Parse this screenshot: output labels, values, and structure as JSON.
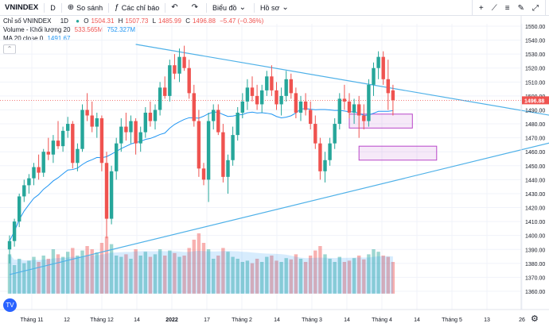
{
  "toolbar": {
    "symbol": "VNINDEX",
    "interval": "D",
    "compare": "So sánh",
    "indicators": "Các chỉ báo",
    "chart_style": "Biểu đồ",
    "template": "Hồ sơ"
  },
  "legend": {
    "title": "Chỉ số VNINDEX",
    "interval": "1D",
    "ohlc": {
      "o_label": "O",
      "o": "1504.31",
      "h_label": "H",
      "h": "1507.73",
      "l_label": "L",
      "l": "1485.99",
      "c_label": "C",
      "c": "1496.88",
      "chg": "−5.47 (−0.36%)"
    },
    "volume": {
      "label": "Volume - Khối lượng 20",
      "v1": "533.565M",
      "v2": "752.327M"
    },
    "ma": {
      "label": "MA 20 close 0",
      "value": "1491.67"
    }
  },
  "icons": [
    "plus-icon",
    "candles-icon",
    "undo-icon",
    "redo-icon",
    "tradingview-logo",
    "gear-icon"
  ],
  "colors": {
    "up": "#26a69a",
    "down": "#ef5350",
    "ma": "#2196f3",
    "trend": "#4fb1e8",
    "box": "#b946c9",
    "price_line": "#ef5350"
  },
  "chart_data": {
    "type": "candlestick",
    "y_axis": {
      "min": 1360,
      "max": 1550,
      "step": 10,
      "position": "right"
    },
    "last_price": 1496.88,
    "x_ticks": [
      "Tháng 11",
      "12",
      "Tháng 12",
      "14",
      "2022",
      "17",
      "Tháng 2",
      "14",
      "Tháng 3",
      "14",
      "Tháng 4",
      "14",
      "Tháng 5",
      "13",
      "26"
    ],
    "candles": [
      [
        1390,
        1400,
        1380,
        1396
      ],
      [
        1396,
        1412,
        1392,
        1410
      ],
      [
        1410,
        1430,
        1406,
        1428
      ],
      [
        1428,
        1440,
        1424,
        1436
      ],
      [
        1436,
        1444,
        1430,
        1441
      ],
      [
        1441,
        1452,
        1436,
        1449
      ],
      [
        1449,
        1458,
        1440,
        1445
      ],
      [
        1445,
        1462,
        1442,
        1460
      ],
      [
        1460,
        1470,
        1454,
        1458
      ],
      [
        1458,
        1472,
        1452,
        1468
      ],
      [
        1468,
        1482,
        1462,
        1464
      ],
      [
        1464,
        1478,
        1460,
        1475
      ],
      [
        1475,
        1485,
        1470,
        1480
      ],
      [
        1480,
        1482,
        1448,
        1452
      ],
      [
        1452,
        1466,
        1446,
        1462
      ],
      [
        1462,
        1494,
        1460,
        1490
      ],
      [
        1490,
        1502,
        1482,
        1486
      ],
      [
        1486,
        1496,
        1474,
        1478
      ],
      [
        1478,
        1488,
        1470,
        1484
      ],
      [
        1484,
        1486,
        1446,
        1452
      ],
      [
        1452,
        1460,
        1398,
        1412
      ],
      [
        1412,
        1450,
        1408,
        1446
      ],
      [
        1446,
        1470,
        1440,
        1466
      ],
      [
        1466,
        1484,
        1460,
        1478
      ],
      [
        1478,
        1488,
        1468,
        1474
      ],
      [
        1474,
        1486,
        1466,
        1482
      ],
      [
        1482,
        1484,
        1458,
        1466
      ],
      [
        1466,
        1478,
        1460,
        1474
      ],
      [
        1474,
        1492,
        1470,
        1488
      ],
      [
        1488,
        1496,
        1478,
        1482
      ],
      [
        1482,
        1494,
        1476,
        1490
      ],
      [
        1490,
        1510,
        1486,
        1506
      ],
      [
        1506,
        1514,
        1498,
        1500
      ],
      [
        1500,
        1526,
        1496,
        1522
      ],
      [
        1522,
        1530,
        1512,
        1516
      ],
      [
        1516,
        1534,
        1510,
        1528
      ],
      [
        1528,
        1536,
        1518,
        1520
      ],
      [
        1520,
        1526,
        1498,
        1502
      ],
      [
        1502,
        1508,
        1478,
        1482
      ],
      [
        1482,
        1490,
        1442,
        1448
      ],
      [
        1448,
        1452,
        1436,
        1440
      ],
      [
        1440,
        1488,
        1424,
        1482
      ],
      [
        1482,
        1494,
        1476,
        1490
      ],
      [
        1490,
        1494,
        1472,
        1474
      ],
      [
        1474,
        1480,
        1438,
        1442
      ],
      [
        1442,
        1458,
        1430,
        1454
      ],
      [
        1454,
        1478,
        1450,
        1472
      ],
      [
        1472,
        1492,
        1468,
        1488
      ],
      [
        1488,
        1502,
        1484,
        1496
      ],
      [
        1496,
        1512,
        1490,
        1506
      ],
      [
        1506,
        1514,
        1496,
        1500
      ],
      [
        1500,
        1508,
        1490,
        1494
      ],
      [
        1494,
        1508,
        1488,
        1504
      ],
      [
        1504,
        1518,
        1500,
        1514
      ],
      [
        1514,
        1522,
        1500,
        1504
      ],
      [
        1504,
        1510,
        1490,
        1494
      ],
      [
        1494,
        1506,
        1486,
        1500
      ],
      [
        1500,
        1518,
        1496,
        1512
      ],
      [
        1512,
        1516,
        1498,
        1502
      ],
      [
        1502,
        1506,
        1484,
        1488
      ],
      [
        1488,
        1500,
        1482,
        1496
      ],
      [
        1496,
        1502,
        1486,
        1490
      ],
      [
        1490,
        1496,
        1476,
        1480
      ],
      [
        1480,
        1486,
        1462,
        1466
      ],
      [
        1466,
        1470,
        1440,
        1446
      ],
      [
        1446,
        1460,
        1438,
        1454
      ],
      [
        1454,
        1470,
        1450,
        1466
      ],
      [
        1466,
        1484,
        1462,
        1480
      ],
      [
        1480,
        1502,
        1476,
        1498
      ],
      [
        1498,
        1508,
        1490,
        1496
      ],
      [
        1496,
        1502,
        1484,
        1488
      ],
      [
        1488,
        1498,
        1480,
        1494
      ],
      [
        1494,
        1500,
        1470,
        1486
      ],
      [
        1486,
        1494,
        1476,
        1482
      ],
      [
        1482,
        1512,
        1478,
        1508
      ],
      [
        1508,
        1524,
        1500,
        1520
      ],
      [
        1520,
        1532,
        1512,
        1528
      ],
      [
        1528,
        1532,
        1508,
        1512
      ],
      [
        1512,
        1526,
        1490,
        1502
      ],
      [
        1504,
        1508,
        1486,
        1497
      ]
    ],
    "volumes": [
      0.62,
      0.45,
      0.55,
      0.48,
      0.52,
      0.58,
      0.5,
      0.6,
      0.55,
      0.7,
      0.62,
      0.58,
      0.66,
      0.72,
      0.6,
      0.68,
      0.75,
      0.7,
      0.65,
      0.8,
      0.9,
      0.78,
      0.6,
      0.58,
      0.62,
      0.55,
      0.7,
      0.6,
      0.66,
      0.58,
      0.62,
      0.7,
      0.6,
      0.68,
      0.64,
      0.58,
      0.6,
      0.72,
      0.85,
      0.95,
      0.8,
      0.7,
      0.55,
      0.6,
      0.72,
      0.66,
      0.58,
      0.55,
      0.5,
      0.52,
      0.48,
      0.55,
      0.5,
      0.58,
      0.6,
      0.52,
      0.5,
      0.56,
      0.54,
      0.62,
      0.55,
      0.5,
      0.6,
      0.68,
      0.75,
      0.62,
      0.55,
      0.5,
      0.58,
      0.5,
      0.52,
      0.56,
      0.6,
      0.54,
      0.62,
      0.7,
      0.66,
      0.6,
      0.58,
      0.5
    ],
    "trendlines": [
      {
        "from": [
          0,
          1372
        ],
        "to": [
          125,
          1478
        ]
      },
      {
        "from": [
          26,
          1537
        ],
        "to": [
          125,
          1478
        ]
      }
    ],
    "boxes": [
      {
        "x0": 70,
        "x1": 83,
        "y0": 1477,
        "y1": 1487
      },
      {
        "x0": 72,
        "x1": 88,
        "y0": 1454,
        "y1": 1464
      }
    ]
  }
}
